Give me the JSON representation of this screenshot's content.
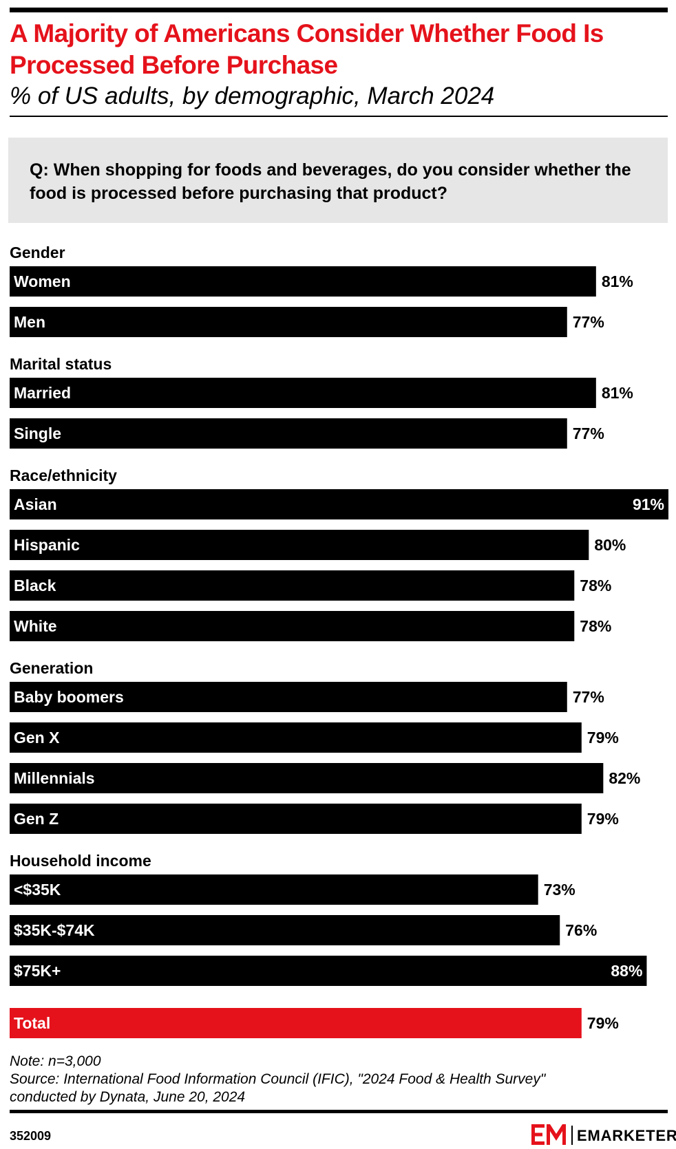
{
  "title": "A Majority of Americans Consider Whether Food Is Processed Before Purchase",
  "subtitle": "% of US adults, by demographic, March 2024",
  "question": "Q: When shopping for foods and beverages, do you consider whether the food is processed before purchasing that product?",
  "chart_data": {
    "type": "bar",
    "orientation": "horizontal",
    "value_suffix": "%",
    "xlim": [
      0,
      91
    ],
    "groups": [
      {
        "name": "Gender",
        "items": [
          {
            "label": "Women",
            "value": 81
          },
          {
            "label": "Men",
            "value": 77
          }
        ]
      },
      {
        "name": "Marital status",
        "items": [
          {
            "label": "Married",
            "value": 81
          },
          {
            "label": "Single",
            "value": 77
          }
        ]
      },
      {
        "name": "Race/ethnicity",
        "items": [
          {
            "label": "Asian",
            "value": 91
          },
          {
            "label": "Hispanic",
            "value": 80
          },
          {
            "label": "Black",
            "value": 78
          },
          {
            "label": "White",
            "value": 78
          }
        ]
      },
      {
        "name": "Generation",
        "items": [
          {
            "label": "Baby boomers",
            "value": 77
          },
          {
            "label": "Gen X",
            "value": 79
          },
          {
            "label": "Millennials",
            "value": 82
          },
          {
            "label": "Gen Z",
            "value": 79
          }
        ]
      },
      {
        "name": "Household income",
        "items": [
          {
            "label": "<$35K",
            "value": 73
          },
          {
            "label": "$35K-$74K",
            "value": 76
          },
          {
            "label": "$75K+",
            "value": 88
          }
        ]
      }
    ],
    "total": {
      "label": "Total",
      "value": 79
    },
    "colors": {
      "bar": "#000000",
      "total": "#e5121b",
      "label": "#ffffff"
    }
  },
  "notes": {
    "note": "Note: n=3,000",
    "source_line1": "Source: International Food Information Council (IFIC), \"2024 Food & Health Survey\"",
    "source_line2": "conducted by Dynata, June 20, 2024"
  },
  "footer": {
    "chart_id": "352009",
    "brand": "EMARKETER",
    "brand_color": "#e5121b"
  }
}
